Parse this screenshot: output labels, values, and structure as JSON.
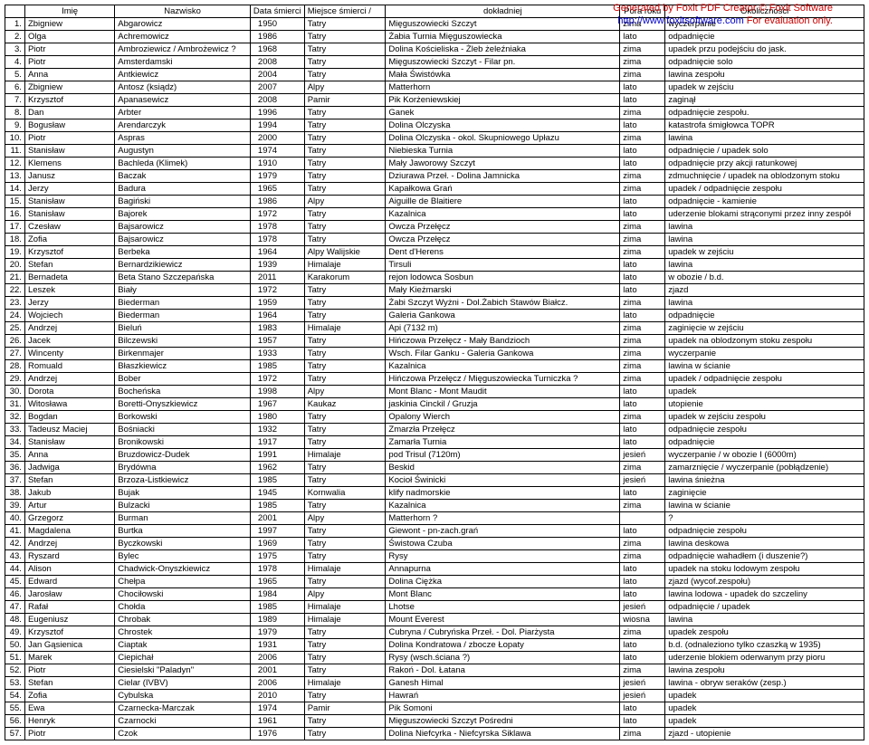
{
  "watermark": {
    "line1a": "Generated by Foxit PDF Creator © Foxit Software",
    "line2_url": "http://www.foxitsoftware.com",
    "line2_rest": "   For evaluation only."
  },
  "headers": [
    "",
    "Imię",
    "Nazwisko",
    "Data śmierci",
    "Miejsce śmierci  /",
    "dokładniej",
    "Pora roku",
    "Okoliczności"
  ],
  "rows": [
    [
      "1.",
      "Zbigniew",
      "Abgarowicz",
      "1950",
      "Tatry",
      "Mięguszowiecki Szczyt",
      "zima",
      "wyczerpanie"
    ],
    [
      "2.",
      "Olga",
      "Achremowicz",
      "1986",
      "Tatry",
      "Żabia Turnia Mięguszowiecka",
      "lato",
      "odpadnięcie"
    ],
    [
      "3.",
      "Piotr",
      "Ambroziewicz / Ambrożewicz ?",
      "1968",
      "Tatry",
      "Dolina Kościeliska - Żleb żeleźniaka",
      "zima",
      "upadek przu podejściu do jask."
    ],
    [
      "4.",
      "Piotr",
      "Amsterdamski",
      "2008",
      "Tatry",
      "Mięguszowiecki Szczyt - Filar pn.",
      "zima",
      "odpadnięcie solo"
    ],
    [
      "5.",
      "Anna",
      "Antkiewicz",
      "2004",
      "Tatry",
      "Mała Świstówka",
      "zima",
      "lawina zespołu"
    ],
    [
      "6.",
      "Zbigniew",
      "Antosz (ksiądz)",
      "2007",
      "Alpy",
      "Matterhorn",
      "lato",
      "upadek w zejściu"
    ],
    [
      "7.",
      "Krzysztof",
      "Apanasewicz",
      "2008",
      "Pamir",
      "Pik Korżeniewskiej",
      "lato",
      "zaginął"
    ],
    [
      "8.",
      "Dan",
      "Arbter",
      "1996",
      "Tatry",
      "Ganek",
      "zima",
      "odpadnięcie zespołu."
    ],
    [
      "9.",
      "Bogusław",
      "Arendarczyk",
      "1994",
      "Tatry",
      "Dolina Olczyska",
      "lato",
      "katastrofa śmigłowca TOPR"
    ],
    [
      "10.",
      "Piotr",
      "Aspras",
      "2000",
      "Tatry",
      "Dolina Olczyska - okol. Skupniowego Upłazu",
      "zima",
      "lawina"
    ],
    [
      "11.",
      "Stanisław",
      "Augustyn",
      "1974",
      "Tatry",
      "Niebieska Turnia",
      "lato",
      "odpadnięcie / upadek solo"
    ],
    [
      "12.",
      "Klemens",
      "Bachleda (Klimek)",
      "1910",
      "Tatry",
      "Mały Jaworowy Szczyt",
      "lato",
      "odpadnięcie przy akcji ratunkowej"
    ],
    [
      "13.",
      "Janusz",
      "Baczak",
      "1979",
      "Tatry",
      "Dziurawa Przeł. - Dolina Jamnicka",
      "zima",
      "zdmuchnięcie / upadek na oblodzonym stoku"
    ],
    [
      "14.",
      "Jerzy",
      "Badura",
      "1965",
      "Tatry",
      "Kapałkowa Grań",
      "zima",
      "upadek / odpadnięcie zespołu"
    ],
    [
      "15.",
      "Stanisław",
      "Bagiński",
      "1986",
      "Alpy",
      "Aiguille de Blaitiere",
      "lato",
      "odpadnięcie - kamienie"
    ],
    [
      "16.",
      "Stanisław",
      "Bajorek",
      "1972",
      "Tatry",
      "Kazalnica",
      "lato",
      "uderzenie blokami strąconymi przez inny zespół"
    ],
    [
      "17.",
      "Czesław",
      "Bajsarowicz",
      "1978",
      "Tatry",
      "Owcza Przełęcz",
      "zima",
      "lawina"
    ],
    [
      "18.",
      "Zofia",
      "Bajsarowicz",
      "1978",
      "Tatry",
      "Owcza Przełęcz",
      "zima",
      "lawina"
    ],
    [
      "19.",
      "Krzysztof",
      "Berbeka",
      "1964",
      "Alpy Walijskie",
      "Dent d'Herens",
      "zima",
      "upadek w zejściu"
    ],
    [
      "20.",
      "Stefan",
      "Bernardzikiewicz",
      "1939",
      "Himalaje",
      "Tirsuli",
      "lato",
      "lawina"
    ],
    [
      "21.",
      "Bernadeta",
      "Beta Stano Szczepańska",
      "2011",
      "Karakorum",
      "rejon lodowca Sosbun",
      "lato",
      "w obozie / b.d."
    ],
    [
      "22.",
      "Leszek",
      "Biały",
      "1972",
      "Tatry",
      "Mały Kieżmarski",
      "lato",
      "zjazd"
    ],
    [
      "23.",
      "Jerzy",
      "Biederman",
      "1959",
      "Tatry",
      "Żabi Szczyt Wyżni - Dol.Żabich Stawów Białcz.",
      "zima",
      "lawina"
    ],
    [
      "24.",
      "Wojciech",
      "Biederman",
      "1964",
      "Tatry",
      "Galeria Gankowa",
      "lato",
      "odpadnięcie"
    ],
    [
      "25.",
      "Andrzej",
      "Bieluń",
      "1983",
      "Himalaje",
      "Api (7132 m)",
      "zima",
      "zaginięcie w zejściu"
    ],
    [
      "26.",
      "Jacek",
      "Bilczewski",
      "1957",
      "Tatry",
      "Hińczowa Przełęcz - Mały Bandzioch",
      "zima",
      "upadek na oblodzonym stoku zespołu"
    ],
    [
      "27.",
      "Wincenty",
      "Birkenmajer",
      "1933",
      "Tatry",
      "Wsch. Filar Ganku - Galeria Gankowa",
      "zima",
      "wyczerpanie"
    ],
    [
      "28.",
      "Romuald",
      "Błaszkiewicz",
      "1985",
      "Tatry",
      "Kazalnica",
      "zima",
      "lawina w ścianie"
    ],
    [
      "29.",
      "Andrzej",
      "Bober",
      "1972",
      "Tatry",
      "Hińczowa Przełęcz / Mięguszowiecka Turniczka ?",
      "zima",
      "upadek / odpadnięcie zespołu"
    ],
    [
      "30.",
      "Dorota",
      "Bocheńska",
      "1998",
      "Alpy",
      "Mont Blanc - Mont Maudit",
      "lato",
      "upadek"
    ],
    [
      "31.",
      "Witosława",
      "Boretti-Onyszkiewicz",
      "1967",
      "Kaukaz",
      "jaskinia Cinckil / Gruzja",
      "lato",
      "utopienie"
    ],
    [
      "32.",
      "Bogdan",
      "Borkowski",
      "1980",
      "Tatry",
      "Opalony Wierch",
      "zima",
      "upadek w zejściu zespołu"
    ],
    [
      "33.",
      "Tadeusz Maciej",
      "Bośniacki",
      "1932",
      "Tatry",
      "Zmarzła Przełęcz",
      "lato",
      "odpadnięcie zespołu"
    ],
    [
      "34.",
      "Stanisław",
      "Bronikowski",
      "1917",
      "Tatry",
      "Zamarła Turnia",
      "lato",
      "odpadnięcie"
    ],
    [
      "35.",
      "Anna",
      "Bruzdowicz-Dudek",
      "1991",
      "Himalaje",
      "pod Trisul (7120m)",
      "jesień",
      "wyczerpanie / w obozie I (6000m)"
    ],
    [
      "36.",
      "Jadwiga",
      "Brydówna",
      "1962",
      "Tatry",
      "Beskid",
      "zima",
      "zamarznięcie / wyczerpanie (pobłądzenie)"
    ],
    [
      "37.",
      "Stefan",
      "Brzoza-Listkiewicz",
      "1985",
      "Tatry",
      "Kocioł Świnicki",
      "jesień",
      "lawina śnieżna"
    ],
    [
      "38.",
      "Jakub",
      "Bujak",
      "1945",
      "Kornwalia",
      "klify nadmorskie",
      "lato",
      "zaginięcie"
    ],
    [
      "39.",
      "Artur",
      "Bulzacki",
      "1985",
      "Tatry",
      "Kazalnica",
      "zima",
      "lawina w ścianie"
    ],
    [
      "40.",
      "Grzegorz",
      "Burman",
      "2001",
      "Alpy",
      "Matterhorn ?",
      "",
      "?"
    ],
    [
      "41.",
      "Magdalena",
      "Burtka",
      "1997",
      "Tatry",
      "Giewont - pn-zach.grań",
      "lato",
      "odpadnięcie zespołu"
    ],
    [
      "42.",
      "Andrzej",
      "Byczkowski",
      "1969",
      "Tatry",
      "Świstowa Czuba",
      "zima",
      "lawina deskowa"
    ],
    [
      "43.",
      "Ryszard",
      "Bylec",
      "1975",
      "Tatry",
      "Rysy",
      "zima",
      "odpadnięcie wahadłem (i duszenie?)"
    ],
    [
      "44.",
      "Alison",
      "Chadwick-Onyszkiewicz",
      "1978",
      "Himalaje",
      "Annapurna",
      "lato",
      "upadek na stoku lodowym zespołu"
    ],
    [
      "45.",
      "Edward",
      "Chełpa",
      "1965",
      "Tatry",
      "Dolina Ciężka",
      "lato",
      "zjazd (wycof.zespołu)"
    ],
    [
      "46.",
      "Jarosław",
      "Chociłowski",
      "1984",
      "Alpy",
      "Mont Blanc",
      "lato",
      "lawina lodowa - upadek do szczeliny"
    ],
    [
      "47.",
      "Rafał",
      "Chołda",
      "1985",
      "Himalaje",
      "Lhotse",
      "jesień",
      "odpadnięcie / upadek"
    ],
    [
      "48.",
      "Eugeniusz",
      "Chrobak",
      "1989",
      "Himalaje",
      "Mount Everest",
      "wiosna",
      "lawina"
    ],
    [
      "49.",
      "Krzysztof",
      "Chrostek",
      "1979",
      "Tatry",
      "Cubryna / Cubryńska Przeł. - Dol. Piarżysta",
      "zima",
      "upadek zespołu"
    ],
    [
      "50.",
      "Jan Gąsienica",
      "Ciaptak",
      "1931",
      "Tatry",
      "Dolina Kondratowa / zbocze Łopaty",
      "lato",
      "b.d. (odnaleziono tylko czaszką w 1935)"
    ],
    [
      "51.",
      "Marek",
      "Ciepichał",
      "2006",
      "Tatry",
      "Rysy (wsch.ściana ?)",
      "lato",
      "uderzenie blokiem oderwanym przy pioru"
    ],
    [
      "52.",
      "Piotr",
      "Ciesielski \"Paladyn\"",
      "2001",
      "Tatry",
      "Rakoń - Dol. Łatana",
      "zima",
      "lawina zespołu"
    ],
    [
      "53.",
      "Stefan",
      "Cielar (IVBV)",
      "2006",
      "Himalaje",
      "Ganesh Himal",
      "jesień",
      "lawina - obryw seraków (zesp.)"
    ],
    [
      "54.",
      "Zofia",
      "Cybulska",
      "2010",
      "Tatry",
      "Hawrań",
      "jesień",
      "upadek"
    ],
    [
      "55.",
      "Ewa",
      "Czarnecka-Marczak",
      "1974",
      "Pamir",
      "Pik Somoni",
      "lato",
      "upadek"
    ],
    [
      "56.",
      "Henryk",
      "Czarnocki",
      "1961",
      "Tatry",
      "Mięguszowiecki Szczyt Pośredni",
      "lato",
      "upadek"
    ],
    [
      "57.",
      "Piotr",
      "Czok",
      "1976",
      "Tatry",
      "Dolina Niefcyrka - Niefcyrska Siklawa",
      "zima",
      "zjazd - utopienie"
    ]
  ]
}
